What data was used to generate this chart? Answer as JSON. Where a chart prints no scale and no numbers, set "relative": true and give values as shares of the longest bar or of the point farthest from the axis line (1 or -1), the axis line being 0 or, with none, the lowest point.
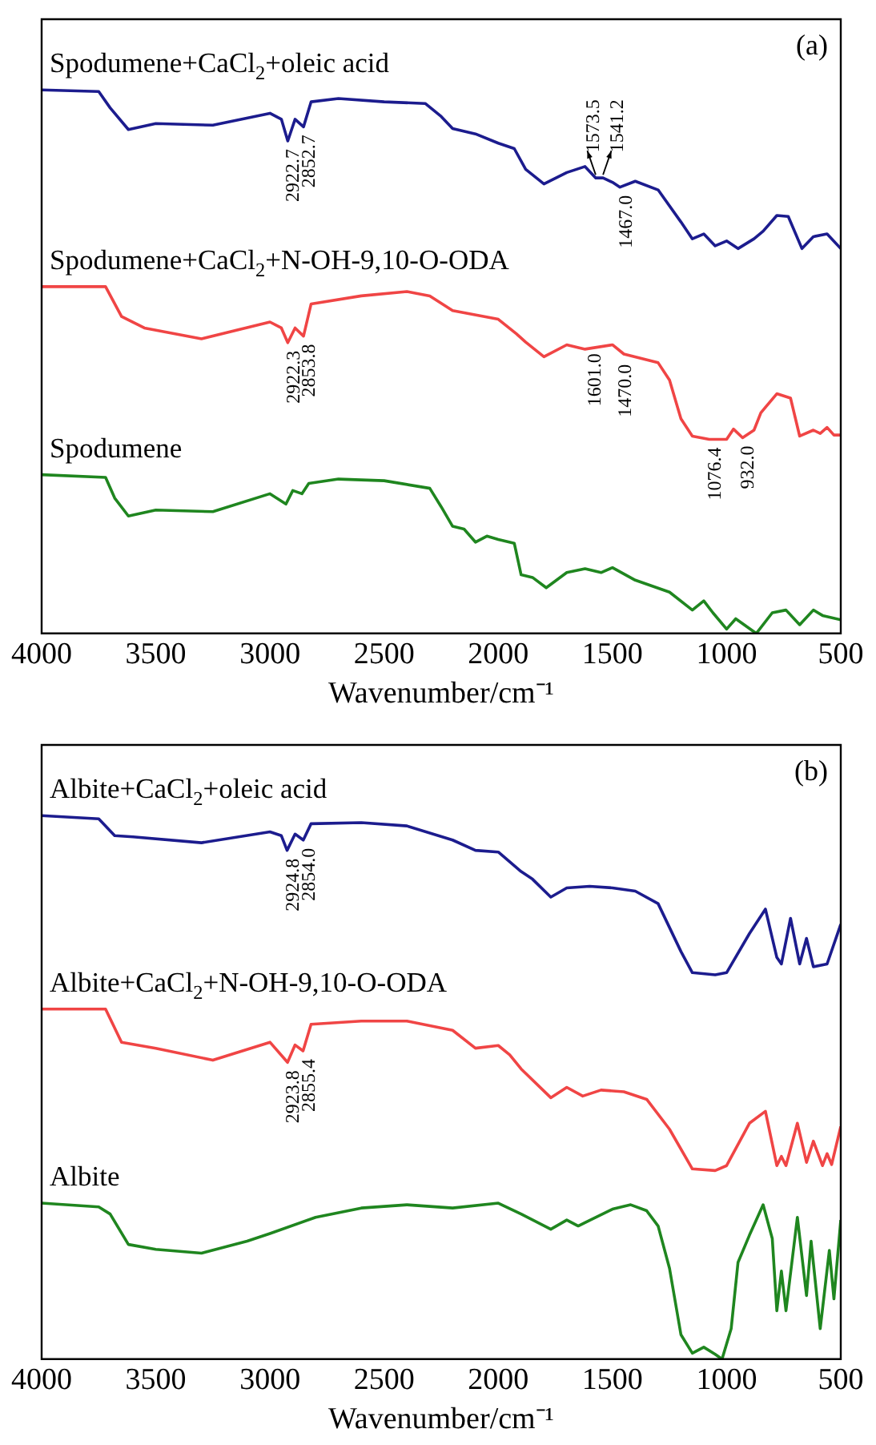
{
  "chart_data": [
    {
      "type": "line",
      "relative": true,
      "xlabel": "Wavenumber/cm⁻¹",
      "xlim": [
        4000,
        500
      ],
      "xticks": [
        4000,
        3500,
        3000,
        2500,
        2000,
        1500,
        1000,
        500
      ],
      "tick_labels": "x",
      "marker": "none",
      "legend": false,
      "annotations": [
        "(a)",
        {
          "text": "2922.7",
          "x": 2922.7,
          "y": 0.906
        },
        {
          "text": "2852.7",
          "x": 2852.7,
          "y": 0.932
        },
        {
          "text": "1573.5",
          "x": 1573.5,
          "y": 0.838
        },
        {
          "text": "1541.2",
          "x": 1541.2,
          "y": 0.838
        },
        {
          "text": "1467.0",
          "x": 1467.0,
          "y": 0.821
        },
        {
          "text": "2922.3",
          "x": 2922.3,
          "y": 0.535
        },
        {
          "text": "2853.8",
          "x": 2853.8,
          "y": 0.547
        },
        {
          "text": "1601.0",
          "x": 1601.0,
          "y": 0.53
        },
        {
          "text": "1470.0",
          "x": 1470.0,
          "y": 0.51
        },
        {
          "text": "1076.4",
          "x": 1076.4,
          "y": 0.357
        },
        {
          "text": "932.0",
          "x": 932.0,
          "y": 0.36
        }
      ],
      "series": [
        {
          "name": "Spodumene+CaCl$_{2}$+oleic acid",
          "color": "#1c1c8e",
          "x": [
            4000,
            3750,
            3700,
            3620,
            3500,
            3250,
            3000,
            2950,
            2922,
            2890,
            2853,
            2820,
            2700,
            2500,
            2320,
            2250,
            2200,
            2100,
            2000,
            1930,
            1880,
            1800,
            1700,
            1620,
            1573,
            1541,
            1500,
            1467,
            1400,
            1300,
            1200,
            1150,
            1100,
            1050,
            1000,
            950,
            880,
            840,
            780,
            730,
            670,
            620,
            560,
            500
          ],
          "values": [
            1.0,
            0.997,
            0.967,
            0.927,
            0.938,
            0.935,
            0.957,
            0.946,
            0.906,
            0.946,
            0.932,
            0.978,
            0.984,
            0.978,
            0.975,
            0.951,
            0.929,
            0.919,
            0.902,
            0.892,
            0.854,
            0.827,
            0.848,
            0.859,
            0.838,
            0.838,
            0.83,
            0.821,
            0.832,
            0.816,
            0.757,
            0.726,
            0.735,
            0.713,
            0.722,
            0.708,
            0.726,
            0.74,
            0.769,
            0.767,
            0.708,
            0.73,
            0.735,
            0.708
          ]
        },
        {
          "name": "Spodumene+CaCl$_{2}$+N-OH-9,10-O-ODA",
          "color": "#f04545",
          "x": [
            4000,
            3720,
            3650,
            3550,
            3300,
            3000,
            2950,
            2922,
            2890,
            2853,
            2820,
            2600,
            2400,
            2300,
            2200,
            2000,
            1920,
            1880,
            1800,
            1700,
            1620,
            1500,
            1450,
            1300,
            1250,
            1200,
            1150,
            1076,
            1000,
            970,
            930,
            880,
            850,
            780,
            720,
            680,
            620,
            590,
            560,
            530,
            500
          ],
          "values": [
            0.638,
            0.638,
            0.583,
            0.562,
            0.542,
            0.573,
            0.562,
            0.535,
            0.562,
            0.547,
            0.606,
            0.621,
            0.629,
            0.621,
            0.594,
            0.578,
            0.551,
            0.536,
            0.509,
            0.531,
            0.523,
            0.531,
            0.514,
            0.498,
            0.466,
            0.395,
            0.363,
            0.357,
            0.357,
            0.376,
            0.36,
            0.374,
            0.406,
            0.441,
            0.433,
            0.363,
            0.374,
            0.368,
            0.379,
            0.365,
            0.365
          ]
        },
        {
          "name": "Spodumene",
          "color": "#1f861f",
          "x": [
            4000,
            3720,
            3680,
            3620,
            3500,
            3250,
            3000,
            2930,
            2900,
            2860,
            2830,
            2700,
            2500,
            2300,
            2250,
            2200,
            2150,
            2100,
            2050,
            2000,
            1930,
            1900,
            1850,
            1790,
            1700,
            1620,
            1550,
            1500,
            1400,
            1250,
            1150,
            1100,
            1060,
            1000,
            960,
            870,
            800,
            740,
            680,
            620,
            580,
            500
          ],
          "values": [
            0.292,
            0.287,
            0.249,
            0.216,
            0.227,
            0.224,
            0.257,
            0.238,
            0.263,
            0.257,
            0.276,
            0.284,
            0.281,
            0.267,
            0.233,
            0.197,
            0.192,
            0.168,
            0.179,
            0.173,
            0.166,
            0.108,
            0.103,
            0.084,
            0.112,
            0.119,
            0.112,
            0.121,
            0.098,
            0.076,
            0.043,
            0.06,
            0.038,
            0.008,
            0.027,
            0.0,
            0.038,
            0.043,
            0.016,
            0.043,
            0.033,
            0.025
          ]
        }
      ]
    },
    {
      "type": "line",
      "relative": true,
      "xlabel": "Wavenumber/cm⁻¹",
      "xlim": [
        4000,
        500
      ],
      "xticks": [
        4000,
        3500,
        3000,
        2500,
        2000,
        1500,
        1000,
        500
      ],
      "tick_labels": "x",
      "marker": "none",
      "legend": false,
      "annotations": [
        "(b)",
        {
          "text": "2924.8",
          "x": 2924.8,
          "y": 0.936
        },
        {
          "text": "2854.0",
          "x": 2854.0,
          "y": 0.955
        },
        {
          "text": "2923.8",
          "x": 2923.8,
          "y": 0.546
        },
        {
          "text": "2855.4",
          "x": 2855.4,
          "y": 0.567
        }
      ],
      "series": [
        {
          "name": "Albite+CaCl$_{2}$+oleic acid",
          "color": "#1c1c8e",
          "x": [
            4000,
            3750,
            3680,
            3600,
            3300,
            3000,
            2950,
            2925,
            2890,
            2854,
            2820,
            2600,
            2400,
            2200,
            2100,
            2000,
            1900,
            1850,
            1770,
            1700,
            1600,
            1500,
            1400,
            1300,
            1200,
            1150,
            1050,
            1000,
            900,
            830,
            780,
            760,
            720,
            680,
            650,
            620,
            560,
            500
          ],
          "values": [
            1.0,
            0.994,
            0.963,
            0.961,
            0.95,
            0.97,
            0.963,
            0.936,
            0.966,
            0.955,
            0.985,
            0.987,
            0.981,
            0.955,
            0.936,
            0.933,
            0.897,
            0.883,
            0.85,
            0.867,
            0.87,
            0.867,
            0.861,
            0.838,
            0.75,
            0.711,
            0.707,
            0.711,
            0.783,
            0.828,
            0.739,
            0.727,
            0.811,
            0.727,
            0.774,
            0.722,
            0.727,
            0.8
          ]
        },
        {
          "name": "Albite+CaCl$_{2}$+N-OH-9,10-O-ODA",
          "color": "#f04545",
          "x": [
            4000,
            3720,
            3650,
            3500,
            3250,
            3000,
            2923,
            2890,
            2855,
            2820,
            2600,
            2400,
            2200,
            2100,
            2000,
            1950,
            1900,
            1770,
            1700,
            1630,
            1550,
            1450,
            1350,
            1250,
            1150,
            1050,
            1000,
            900,
            830,
            780,
            760,
            740,
            690,
            650,
            620,
            580,
            560,
            540,
            500
          ],
          "values": [
            0.644,
            0.644,
            0.583,
            0.572,
            0.55,
            0.583,
            0.546,
            0.578,
            0.567,
            0.616,
            0.622,
            0.622,
            0.605,
            0.572,
            0.577,
            0.56,
            0.534,
            0.481,
            0.5,
            0.484,
            0.495,
            0.492,
            0.478,
            0.423,
            0.35,
            0.347,
            0.356,
            0.434,
            0.456,
            0.356,
            0.373,
            0.356,
            0.434,
            0.362,
            0.401,
            0.356,
            0.378,
            0.358,
            0.428
          ]
        },
        {
          "name": "Albite",
          "color": "#1f861f",
          "x": [
            4000,
            3750,
            3700,
            3620,
            3500,
            3300,
            3100,
            3000,
            2800,
            2600,
            2400,
            2200,
            2000,
            1900,
            1770,
            1700,
            1650,
            1500,
            1420,
            1350,
            1300,
            1250,
            1200,
            1150,
            1100,
            1050,
            1020,
            980,
            950,
            900,
            840,
            800,
            780,
            760,
            740,
            690,
            650,
            630,
            590,
            550,
            530,
            500
          ],
          "values": [
            0.287,
            0.28,
            0.267,
            0.211,
            0.202,
            0.195,
            0.217,
            0.231,
            0.261,
            0.278,
            0.284,
            0.278,
            0.287,
            0.267,
            0.239,
            0.256,
            0.245,
            0.276,
            0.284,
            0.273,
            0.245,
            0.167,
            0.045,
            0.011,
            0.022,
            0.009,
            0.0,
            0.056,
            0.178,
            0.228,
            0.284,
            0.222,
            0.089,
            0.162,
            0.089,
            0.261,
            0.117,
            0.217,
            0.056,
            0.2,
            0.111,
            0.256
          ]
        }
      ]
    }
  ]
}
